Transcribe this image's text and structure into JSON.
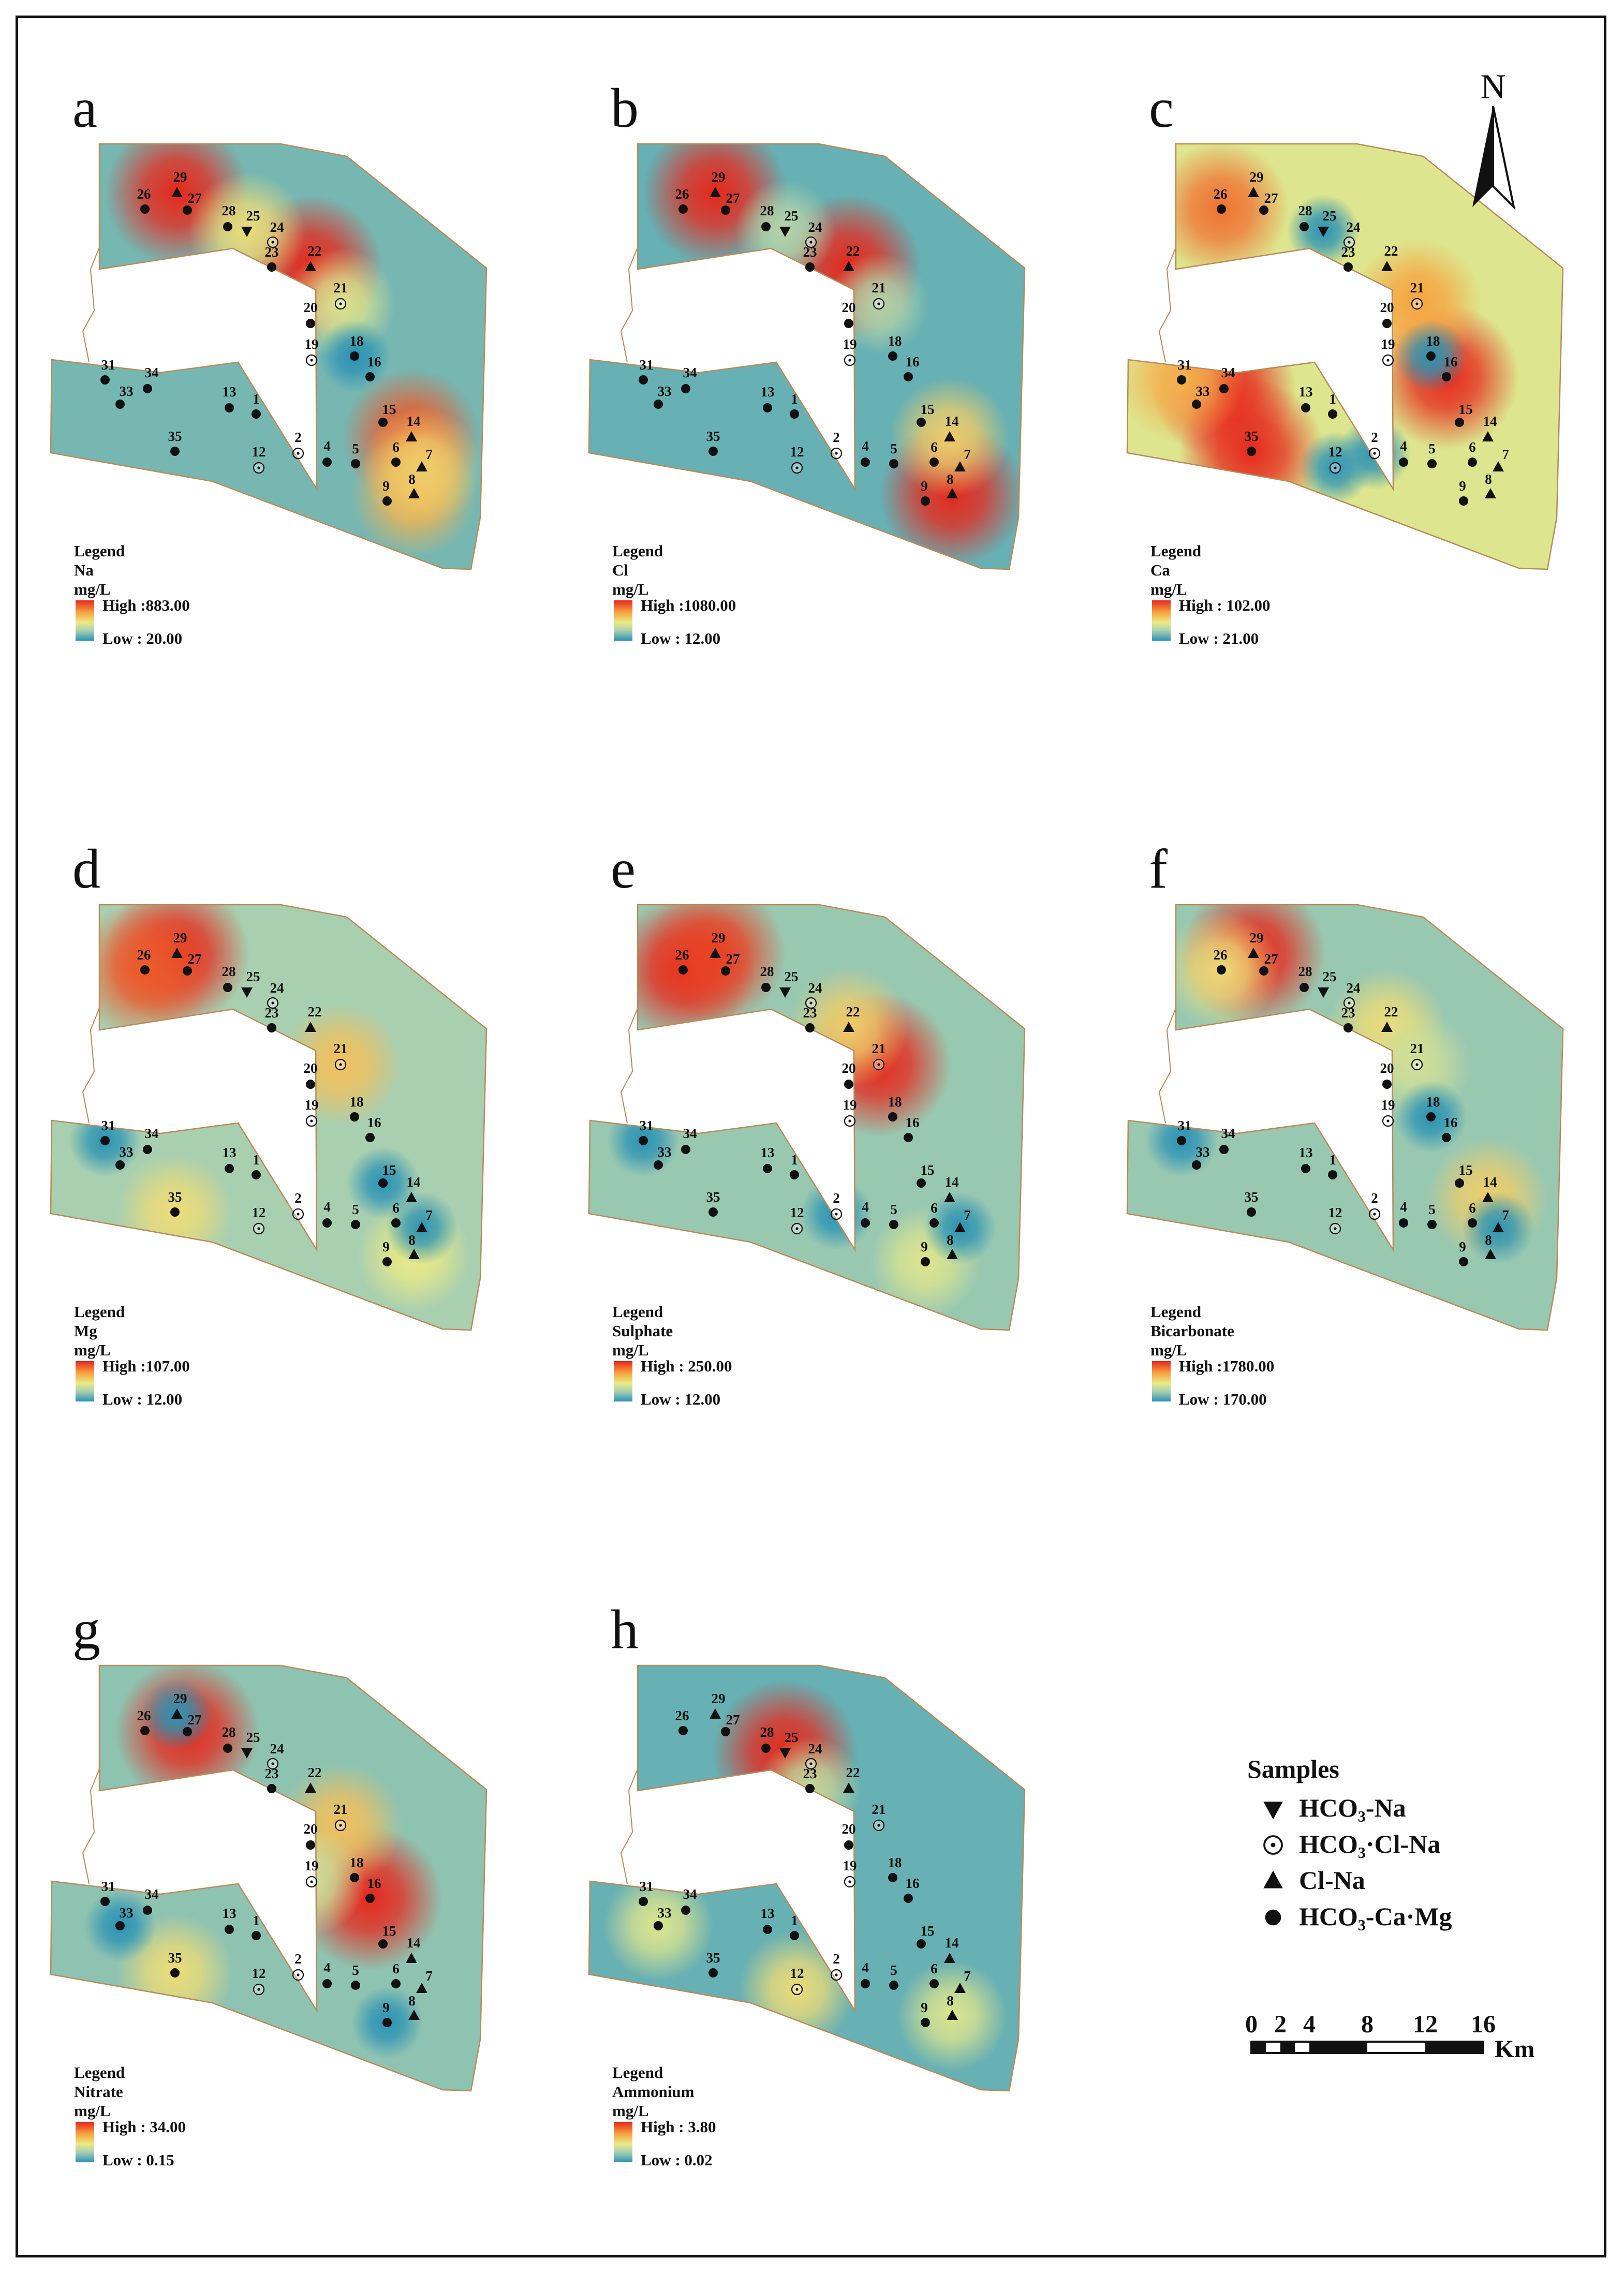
{
  "colors": {
    "low": "#2b93b5",
    "mid_low": "#a8cfb0",
    "mid": "#eaea86",
    "mid_high": "#f7a440",
    "high": "#e6281c",
    "background_map": "#5fa8b8",
    "border": "#b98a5a",
    "marker": "#111111"
  },
  "panels": [
    {
      "id": "a",
      "letter": "a",
      "legend": {
        "title": "Legend",
        "parameter": "Na",
        "unit": "mg/L",
        "high": "High :883.00",
        "low": "Low : 20.00"
      },
      "field": {
        "base": 0.15,
        "hotspots": [
          {
            "site": "29",
            "v": 1.0
          },
          {
            "site": "22",
            "v": 1.0
          },
          {
            "site": "14",
            "v": 0.9
          },
          {
            "site": "8",
            "v": 0.7
          },
          {
            "site": "25",
            "v": 0.55
          },
          {
            "site": "21",
            "v": 0.45
          },
          {
            "site": "7",
            "v": 0.6
          },
          {
            "site": "18",
            "v": -0.2
          }
        ]
      }
    },
    {
      "id": "b",
      "letter": "b",
      "legend": {
        "title": "Legend",
        "parameter": "Cl",
        "unit": "mg/L",
        "high": "High :1080.00",
        "low": "Low : 12.00"
      },
      "field": {
        "base": 0.12,
        "hotspots": [
          {
            "site": "29",
            "v": 1.0
          },
          {
            "site": "22",
            "v": 1.0
          },
          {
            "site": "8",
            "v": 1.0
          },
          {
            "site": "14",
            "v": 0.6
          },
          {
            "site": "21",
            "v": 0.3
          },
          {
            "site": "25",
            "v": 0.3
          }
        ]
      }
    },
    {
      "id": "c",
      "letter": "c",
      "legend": {
        "title": "Legend",
        "parameter": "Ca",
        "unit": "mg/L",
        "high": "High : 102.00",
        "low": "Low : 21.00"
      },
      "field": {
        "base": 0.45,
        "hotspots": [
          {
            "site": "34",
            "v": 1.0
          },
          {
            "site": "35",
            "v": 1.0
          },
          {
            "site": "26",
            "v": 0.85
          },
          {
            "site": "16",
            "v": 1.0
          },
          {
            "site": "31",
            "v": 0.7
          },
          {
            "site": "21",
            "v": 0.75
          },
          {
            "site": "25",
            "v": -0.35
          },
          {
            "site": "12",
            "v": -0.3
          },
          {
            "site": "18",
            "v": -0.3
          },
          {
            "site": "2",
            "v": -0.25
          }
        ]
      }
    },
    {
      "id": "d",
      "letter": "d",
      "legend": {
        "title": "Legend",
        "parameter": "Mg",
        "unit": "mg/L",
        "high": "High :107.00",
        "low": "Low : 12.00"
      },
      "field": {
        "base": 0.25,
        "hotspots": [
          {
            "site": "29",
            "v": 1.0
          },
          {
            "site": "26",
            "v": 0.9
          },
          {
            "site": "21",
            "v": 0.65
          },
          {
            "site": "35",
            "v": 0.55
          },
          {
            "site": "8",
            "v": 0.5
          },
          {
            "site": "31",
            "v": -0.2
          },
          {
            "site": "15",
            "v": -0.2
          },
          {
            "site": "7",
            "v": -0.2
          }
        ]
      }
    },
    {
      "id": "e",
      "letter": "e",
      "legend": {
        "title": "Legend",
        "parameter": "Sulphate",
        "unit": "mg/L",
        "high": "High : 250.00",
        "low": "Low : 12.00"
      },
      "field": {
        "base": 0.22,
        "hotspots": [
          {
            "site": "26",
            "v": 1.0
          },
          {
            "site": "29",
            "v": 0.95
          },
          {
            "site": "21",
            "v": 1.0
          },
          {
            "site": "22",
            "v": 0.6
          },
          {
            "site": "9",
            "v": 0.45
          },
          {
            "site": "31",
            "v": -0.2
          },
          {
            "site": "2",
            "v": -0.2
          },
          {
            "site": "7",
            "v": -0.15
          }
        ]
      }
    },
    {
      "id": "f",
      "letter": "f",
      "legend": {
        "title": "Legend",
        "parameter": "Bicarbonate",
        "unit": "mg/L",
        "high": "High :1780.00",
        "low": "Low : 170.00"
      },
      "field": {
        "base": 0.22,
        "hotspots": [
          {
            "site": "29",
            "v": 1.0
          },
          {
            "site": "26",
            "v": 0.55
          },
          {
            "site": "22",
            "v": 0.55
          },
          {
            "site": "14",
            "v": 0.6
          },
          {
            "site": "21",
            "v": 0.4
          },
          {
            "site": "18",
            "v": -0.25
          },
          {
            "site": "7",
            "v": -0.2
          },
          {
            "site": "31",
            "v": -0.15
          }
        ]
      }
    },
    {
      "id": "g",
      "letter": "g",
      "legend": {
        "title": "Legend",
        "parameter": "Nitrate",
        "unit": "mg/L",
        "high": "High : 34.00",
        "low": "Low : 0.15"
      },
      "field": {
        "base": 0.2,
        "hotspots": [
          {
            "site": "27",
            "v": 1.0
          },
          {
            "site": "16",
            "v": 1.0
          },
          {
            "site": "21",
            "v": 0.65
          },
          {
            "site": "35",
            "v": 0.55
          },
          {
            "site": "19",
            "v": 0.4
          },
          {
            "site": "29",
            "v": -0.25
          },
          {
            "site": "33",
            "v": -0.2
          },
          {
            "site": "9",
            "v": -0.2
          }
        ]
      }
    },
    {
      "id": "h",
      "letter": "h",
      "legend": {
        "title": "Legend",
        "parameter": "Ammonium",
        "unit": "mg/L",
        "high": "High : 3.80",
        "low": "Low : 0.02"
      },
      "field": {
        "base": 0.12,
        "hotspots": [
          {
            "site": "25",
            "v": 1.0
          },
          {
            "site": "12",
            "v": 0.55
          },
          {
            "site": "33",
            "v": 0.45
          },
          {
            "site": "8",
            "v": 0.45
          },
          {
            "site": "23",
            "v": 0.35
          }
        ]
      }
    }
  ],
  "sites": [
    {
      "id": "26",
      "type": "circle"
    },
    {
      "id": "29",
      "type": "tri_up"
    },
    {
      "id": "27",
      "type": "circle"
    },
    {
      "id": "28",
      "type": "circle"
    },
    {
      "id": "25",
      "type": "tri_down"
    },
    {
      "id": "24",
      "type": "dotted"
    },
    {
      "id": "23",
      "type": "circle"
    },
    {
      "id": "22",
      "type": "tri_up"
    },
    {
      "id": "21",
      "type": "dotted"
    },
    {
      "id": "20",
      "type": "circle"
    },
    {
      "id": "19",
      "type": "dotted"
    },
    {
      "id": "18",
      "type": "circle"
    },
    {
      "id": "16",
      "type": "circle"
    },
    {
      "id": "31",
      "type": "circle"
    },
    {
      "id": "34",
      "type": "circle"
    },
    {
      "id": "33",
      "type": "circle"
    },
    {
      "id": "13",
      "type": "circle"
    },
    {
      "id": "1",
      "type": "circle"
    },
    {
      "id": "15",
      "type": "circle"
    },
    {
      "id": "14",
      "type": "tri_up"
    },
    {
      "id": "35",
      "type": "circle"
    },
    {
      "id": "2",
      "type": "dotted"
    },
    {
      "id": "12",
      "type": "dotted"
    },
    {
      "id": "4",
      "type": "circle"
    },
    {
      "id": "5",
      "type": "circle"
    },
    {
      "id": "6",
      "type": "circle"
    },
    {
      "id": "7",
      "type": "tri_up"
    },
    {
      "id": "9",
      "type": "circle"
    },
    {
      "id": "8",
      "type": "tri_up"
    }
  ],
  "key": {
    "title": "Samples",
    "items": [
      {
        "symbol": "tri_down",
        "label": "HCO₃-Na"
      },
      {
        "symbol": "dotted",
        "label": "HCO₃·Cl-Na"
      },
      {
        "symbol": "tri_up",
        "label": "Cl-Na"
      },
      {
        "symbol": "circle",
        "label": "HCO₃-Ca·Mg"
      }
    ]
  },
  "scale_bar": {
    "labels": [
      "0",
      "2",
      "4",
      "8",
      "12",
      "16"
    ],
    "unit": "Km"
  },
  "north_arrow": {
    "label": "N"
  }
}
